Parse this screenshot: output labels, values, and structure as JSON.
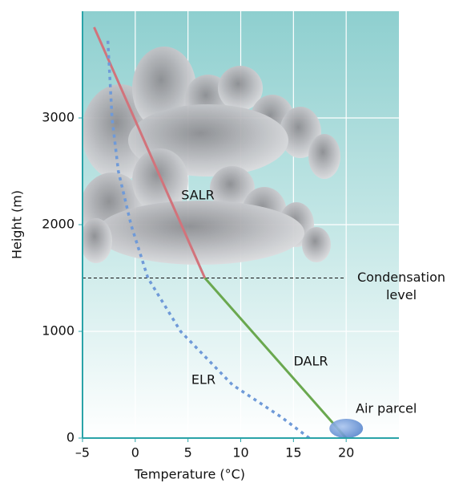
{
  "chart_data": {
    "type": "line",
    "x_label": "Temperature (°C)",
    "y_label": "Height (m)",
    "xlim": [
      -5,
      25
    ],
    "ylim": [
      0,
      4000
    ],
    "xticks": [
      {
        "value": -5,
        "label": "–5"
      },
      0,
      5,
      10,
      15,
      20
    ],
    "yticks": [
      0,
      1000,
      2000,
      3000
    ],
    "grid": true,
    "series": [
      {
        "name": "SALR",
        "color": "#d2737b",
        "style": "solid",
        "x": [
          6.6,
          -3.9
        ],
        "y": [
          1500,
          3850
        ]
      },
      {
        "name": "DALR",
        "color": "#6aa84f",
        "style": "solid",
        "x": [
          20,
          6.6
        ],
        "y": [
          0,
          1500
        ]
      },
      {
        "name": "ELR",
        "color": "#6f9ad8",
        "style": "dotted",
        "x": [
          16.5,
          13.8,
          9.2,
          4.3,
          1.2,
          -0.4,
          -1.6,
          -2.2,
          -2.6
        ],
        "y": [
          0,
          200,
          500,
          1000,
          1500,
          2000,
          2500,
          3000,
          3730
        ]
      }
    ],
    "condensation_level": {
      "label": "Condensation level",
      "value": 1500
    },
    "parcel": {
      "label": "Air parcel",
      "x": 20,
      "y": 0
    }
  }
}
